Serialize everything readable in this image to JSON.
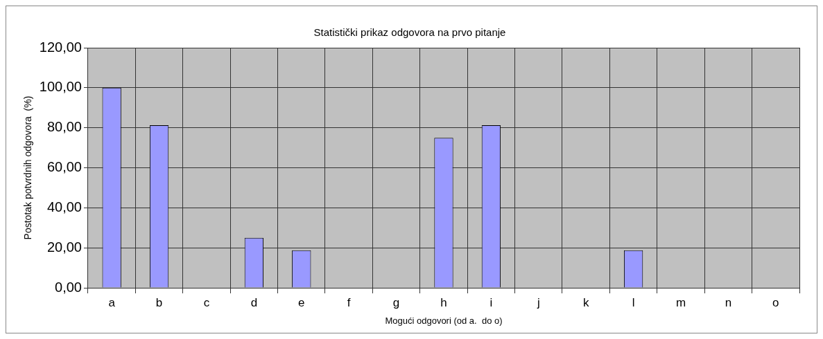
{
  "chart_data": {
    "type": "bar",
    "title": "Statistički prikaz odgovora na prvo pitanje",
    "xlabel": "Mogući odgovori (od a.  do o)",
    "ylabel": "Postotak potvrdnih odgovora  (%)",
    "categories": [
      "a",
      "b",
      "c",
      "d",
      "e",
      "f",
      "g",
      "h",
      "i",
      "j",
      "k",
      "l",
      "m",
      "n",
      "o"
    ],
    "values": [
      100,
      81.3,
      0,
      25,
      18.8,
      0,
      0,
      75,
      81.3,
      0,
      0,
      18.8,
      0,
      0,
      0
    ],
    "color": "#9999ff",
    "ylim": [
      0,
      120
    ],
    "yticks": [
      {
        "value": 0,
        "label": "0,00"
      },
      {
        "value": 20,
        "label": "20,00"
      },
      {
        "value": 40,
        "label": "40,00"
      },
      {
        "value": 60,
        "label": "60,00"
      },
      {
        "value": 80,
        "label": "80,00"
      },
      {
        "value": 100,
        "label": "100,00"
      },
      {
        "value": 120,
        "label": "120,00"
      }
    ],
    "grid": true,
    "legend": false
  }
}
